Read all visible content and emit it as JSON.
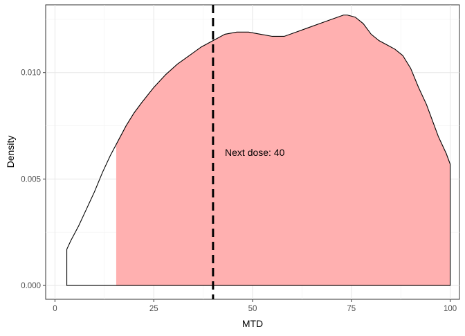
{
  "chart_data": {
    "type": "area",
    "xlabel": "MTD",
    "ylabel": "Density",
    "xlim": [
      -2.35,
      102.35
    ],
    "ylim": [
      -0.000649,
      0.01318
    ],
    "x_ticks": [
      0,
      25,
      50,
      75,
      100
    ],
    "x_tick_labels": [
      "0",
      "25",
      "50",
      "75",
      "100"
    ],
    "y_ticks": [
      0.0,
      0.005,
      0.01
    ],
    "y_tick_labels": [
      "0.000",
      "0.005",
      "0.010"
    ],
    "grid": true,
    "series": [
      {
        "density_x": [
          3,
          4,
          6,
          8,
          10,
          12,
          14,
          16,
          18,
          20,
          22,
          25,
          28,
          31,
          34,
          37,
          40,
          43,
          46,
          49,
          52,
          55,
          58,
          61,
          64,
          67,
          70,
          73,
          74,
          76,
          78,
          80,
          82,
          84,
          86,
          88,
          90,
          92,
          94,
          95,
          96,
          97,
          98,
          99,
          100
        ],
        "density_y": [
          0.0017,
          0.0021,
          0.0028,
          0.0036,
          0.0044,
          0.0053,
          0.0061,
          0.0068,
          0.0075,
          0.0081,
          0.0086,
          0.0093,
          0.0099,
          0.0104,
          0.0108,
          0.0112,
          0.0115,
          0.0118,
          0.0119,
          0.0119,
          0.0118,
          0.0117,
          0.0117,
          0.0119,
          0.0121,
          0.0123,
          0.0125,
          0.0127,
          0.0127,
          0.0126,
          0.0123,
          0.0118,
          0.0115,
          0.0113,
          0.0111,
          0.0108,
          0.0102,
          0.0093,
          0.0085,
          0.008,
          0.0075,
          0.007,
          0.0066,
          0.0062,
          0.0057
        ],
        "shaded_from_x": 15.5,
        "shaded_to_x": 100,
        "fill_color": "#ffb0b0",
        "line_color": "#000000"
      }
    ],
    "vline": {
      "x": 40,
      "style": "dashed",
      "color": "#000000"
    },
    "annotation": {
      "text": "Next dose: 40",
      "x": 43,
      "y": 0.00625
    }
  }
}
